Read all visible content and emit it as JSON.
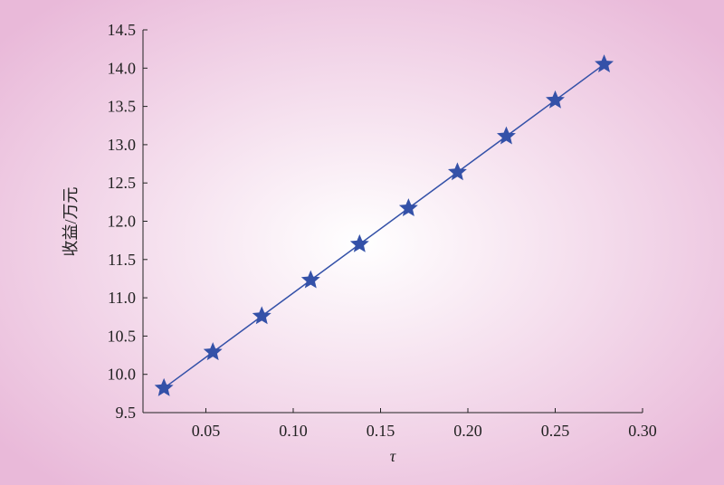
{
  "chart_data": {
    "type": "line",
    "x_label": "τ",
    "y_label": "收益/万元",
    "x": [
      0.026,
      0.054,
      0.082,
      0.11,
      0.138,
      0.166,
      0.194,
      0.222,
      0.25,
      0.278
    ],
    "series": [
      {
        "color": "#3451a8",
        "values": [
          9.82,
          10.29,
          10.76,
          11.23,
          11.7,
          12.17,
          12.64,
          13.11,
          13.58,
          14.05
        ]
      }
    ],
    "xlim": [
      0.014,
      0.3
    ],
    "xticks": [
      0.05,
      {
        "value": 0.1,
        "label": "0.10"
      },
      0.15,
      {
        "value": 0.2,
        "label": "0.20"
      },
      0.25,
      {
        "value": 0.3,
        "label": "0.30"
      }
    ],
    "ylim": [
      9.5,
      14.5
    ],
    "yticks": [
      9.5,
      {
        "value": 10,
        "label": "10.0"
      },
      10.5,
      {
        "value": 11,
        "label": "11.0"
      },
      11.5,
      {
        "value": 12,
        "label": "12.0"
      },
      12.5,
      {
        "value": 13,
        "label": "13.0"
      },
      13.5,
      {
        "value": 14,
        "label": "14.0"
      },
      14.5
    ],
    "marker": "star",
    "grid": false
  }
}
